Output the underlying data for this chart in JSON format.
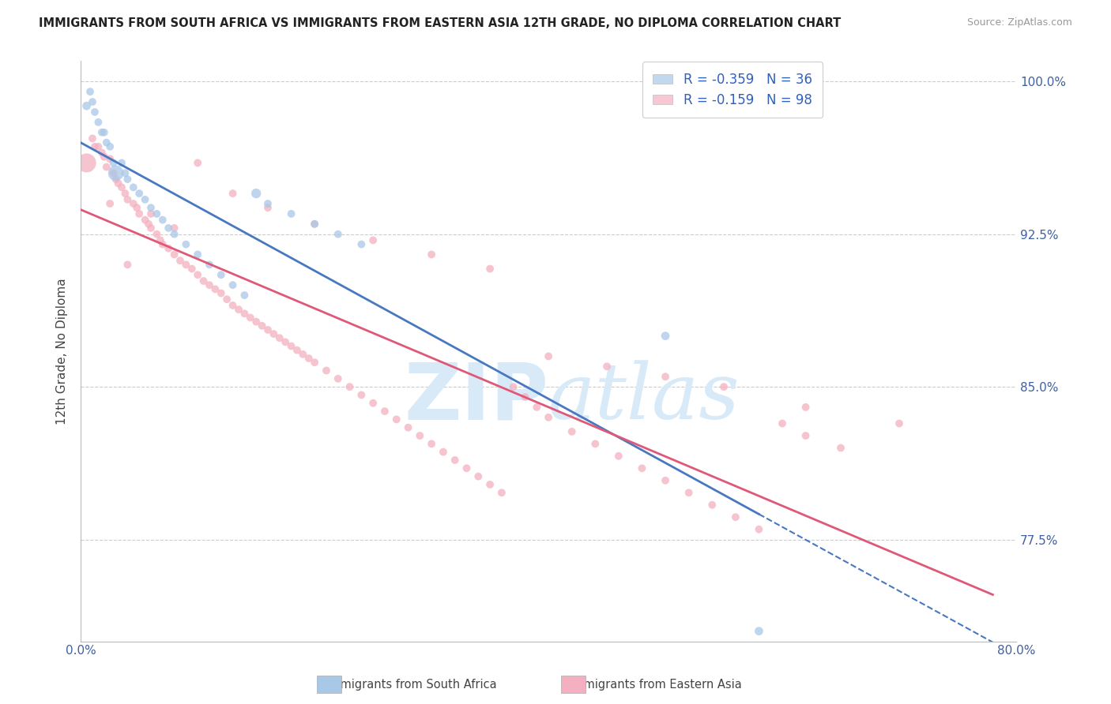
{
  "title": "IMMIGRANTS FROM SOUTH AFRICA VS IMMIGRANTS FROM EASTERN ASIA 12TH GRADE, NO DIPLOMA CORRELATION CHART",
  "source": "Source: ZipAtlas.com",
  "ylabel": "12th Grade, No Diploma",
  "xlim": [
    0.0,
    0.8
  ],
  "ylim": [
    0.725,
    1.01
  ],
  "r_blue": -0.359,
  "n_blue": 36,
  "r_pink": -0.159,
  "n_pink": 98,
  "blue_color": "#a8c8e8",
  "pink_color": "#f4b0c0",
  "blue_line_color": "#4878c0",
  "pink_line_color": "#e05878",
  "watermark_color": "#d8eaf8",
  "ytick_vals": [
    0.775,
    0.85,
    0.925,
    1.0
  ],
  "ytick_labels": [
    "77.5%",
    "85.0%",
    "92.5%",
    "100.0%"
  ],
  "blue_x": [
    0.005,
    0.008,
    0.01,
    0.012,
    0.015,
    0.018,
    0.02,
    0.022,
    0.025,
    0.028,
    0.03,
    0.035,
    0.038,
    0.04,
    0.045,
    0.05,
    0.055,
    0.06,
    0.065,
    0.07,
    0.075,
    0.08,
    0.09,
    0.1,
    0.11,
    0.12,
    0.13,
    0.14,
    0.15,
    0.16,
    0.18,
    0.2,
    0.22,
    0.24,
    0.5,
    0.58
  ],
  "blue_y": [
    0.988,
    0.995,
    0.99,
    0.985,
    0.98,
    0.975,
    0.975,
    0.97,
    0.968,
    0.96,
    0.955,
    0.96,
    0.955,
    0.952,
    0.948,
    0.945,
    0.942,
    0.938,
    0.935,
    0.932,
    0.928,
    0.925,
    0.92,
    0.915,
    0.91,
    0.905,
    0.9,
    0.895,
    0.945,
    0.94,
    0.935,
    0.93,
    0.925,
    0.92,
    0.875,
    0.73
  ],
  "blue_sizes": [
    60,
    50,
    50,
    50,
    50,
    50,
    50,
    50,
    50,
    50,
    200,
    50,
    50,
    50,
    50,
    50,
    50,
    50,
    50,
    50,
    50,
    50,
    50,
    50,
    50,
    50,
    50,
    50,
    80,
    50,
    50,
    50,
    50,
    50,
    60,
    60
  ],
  "pink_x": [
    0.005,
    0.01,
    0.015,
    0.018,
    0.02,
    0.022,
    0.025,
    0.028,
    0.03,
    0.032,
    0.035,
    0.038,
    0.04,
    0.045,
    0.048,
    0.05,
    0.055,
    0.058,
    0.06,
    0.065,
    0.068,
    0.07,
    0.075,
    0.08,
    0.085,
    0.09,
    0.095,
    0.1,
    0.105,
    0.11,
    0.115,
    0.12,
    0.125,
    0.13,
    0.135,
    0.14,
    0.145,
    0.15,
    0.155,
    0.16,
    0.165,
    0.17,
    0.175,
    0.18,
    0.185,
    0.19,
    0.195,
    0.2,
    0.21,
    0.22,
    0.23,
    0.24,
    0.25,
    0.26,
    0.27,
    0.28,
    0.29,
    0.3,
    0.31,
    0.32,
    0.33,
    0.34,
    0.35,
    0.36,
    0.37,
    0.38,
    0.39,
    0.4,
    0.42,
    0.44,
    0.46,
    0.48,
    0.5,
    0.52,
    0.54,
    0.56,
    0.58,
    0.6,
    0.62,
    0.65,
    0.012,
    0.025,
    0.04,
    0.06,
    0.08,
    0.1,
    0.13,
    0.16,
    0.2,
    0.25,
    0.3,
    0.35,
    0.4,
    0.45,
    0.5,
    0.55,
    0.62,
    0.7
  ],
  "pink_y": [
    0.96,
    0.972,
    0.968,
    0.965,
    0.963,
    0.958,
    0.962,
    0.955,
    0.952,
    0.95,
    0.948,
    0.945,
    0.942,
    0.94,
    0.938,
    0.935,
    0.932,
    0.93,
    0.928,
    0.925,
    0.922,
    0.92,
    0.918,
    0.915,
    0.912,
    0.91,
    0.908,
    0.905,
    0.902,
    0.9,
    0.898,
    0.896,
    0.893,
    0.89,
    0.888,
    0.886,
    0.884,
    0.882,
    0.88,
    0.878,
    0.876,
    0.874,
    0.872,
    0.87,
    0.868,
    0.866,
    0.864,
    0.862,
    0.858,
    0.854,
    0.85,
    0.846,
    0.842,
    0.838,
    0.834,
    0.83,
    0.826,
    0.822,
    0.818,
    0.814,
    0.81,
    0.806,
    0.802,
    0.798,
    0.85,
    0.845,
    0.84,
    0.835,
    0.828,
    0.822,
    0.816,
    0.81,
    0.804,
    0.798,
    0.792,
    0.786,
    0.78,
    0.832,
    0.826,
    0.82,
    0.968,
    0.94,
    0.91,
    0.935,
    0.928,
    0.96,
    0.945,
    0.938,
    0.93,
    0.922,
    0.915,
    0.908,
    0.865,
    0.86,
    0.855,
    0.85,
    0.84,
    0.832
  ],
  "pink_sizes": [
    300,
    50,
    50,
    50,
    50,
    50,
    50,
    50,
    50,
    50,
    50,
    50,
    50,
    50,
    50,
    50,
    50,
    50,
    50,
    50,
    50,
    50,
    50,
    50,
    50,
    50,
    50,
    50,
    50,
    50,
    50,
    50,
    50,
    50,
    50,
    50,
    50,
    50,
    50,
    50,
    50,
    50,
    50,
    50,
    50,
    50,
    50,
    50,
    50,
    50,
    50,
    50,
    50,
    50,
    50,
    50,
    50,
    50,
    50,
    50,
    50,
    50,
    50,
    50,
    50,
    50,
    50,
    50,
    50,
    50,
    50,
    50,
    50,
    50,
    50,
    50,
    50,
    50,
    50,
    50,
    50,
    50,
    50,
    50,
    50,
    50,
    50,
    50,
    50,
    50,
    50,
    50,
    50,
    50,
    50,
    50,
    50,
    50
  ]
}
